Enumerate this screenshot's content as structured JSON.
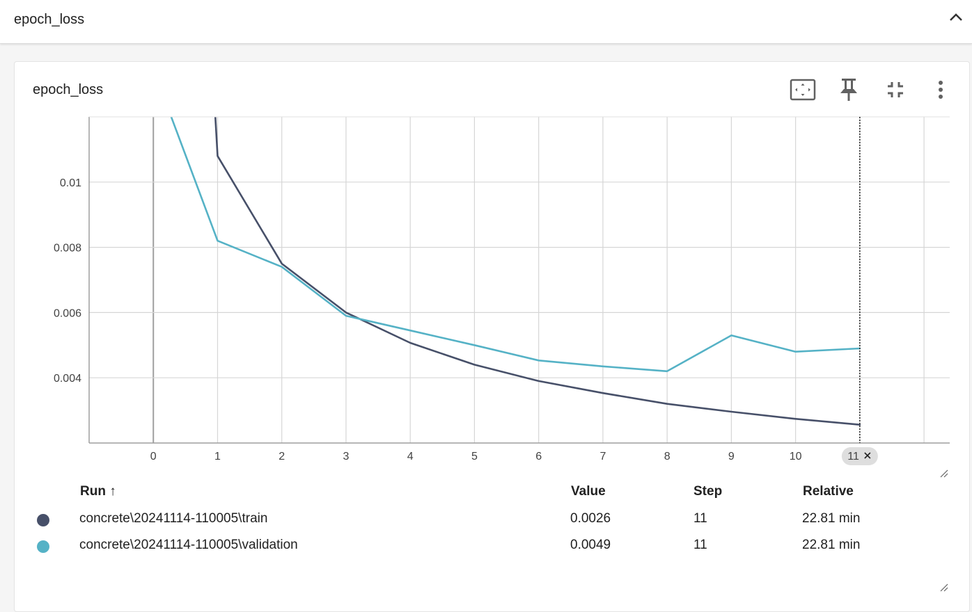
{
  "group": {
    "title": "epoch_loss"
  },
  "card": {
    "title": "epoch_loss",
    "toolbar": {
      "fit_icon": "fit-domain-icon",
      "pin_icon": "pin-icon",
      "collapse_icon": "fullscreen-exit-icon",
      "menu_icon": "more-vert-icon"
    }
  },
  "chart_data": {
    "type": "line",
    "x_ticks": [
      "0",
      "1",
      "2",
      "3",
      "4",
      "5",
      "6",
      "7",
      "8",
      "9",
      "10"
    ],
    "y_ticks": [
      "0.01",
      "0.008",
      "0.006",
      "0.004"
    ],
    "xlim": [
      -1,
      12.4
    ],
    "ylim": [
      0.002,
      0.012
    ],
    "grid": true,
    "hover_step_label": "11",
    "series": [
      {
        "color": "#475069",
        "points": [
          [
            0.95,
            0.0125
          ],
          [
            1,
            0.0108
          ],
          [
            2,
            0.0075
          ],
          [
            3,
            0.006
          ],
          [
            4,
            0.00507
          ],
          [
            5,
            0.0044
          ],
          [
            6,
            0.0039
          ],
          [
            7,
            0.00353
          ],
          [
            8,
            0.0032
          ],
          [
            9,
            0.00296
          ],
          [
            10,
            0.00274
          ],
          [
            11,
            0.00256
          ]
        ]
      },
      {
        "color": "#55b2c6",
        "points": [
          [
            0.24,
            0.0122
          ],
          [
            1,
            0.0082
          ],
          [
            2,
            0.0074
          ],
          [
            3,
            0.0059
          ],
          [
            4,
            0.00545
          ],
          [
            5,
            0.005
          ],
          [
            6,
            0.00453
          ],
          [
            7,
            0.00435
          ],
          [
            8,
            0.0042
          ],
          [
            9,
            0.0053
          ],
          [
            10,
            0.0048
          ],
          [
            11,
            0.0049
          ]
        ]
      }
    ]
  },
  "table": {
    "headers": {
      "run": "Run ↑",
      "value": "Value",
      "step": "Step",
      "relative": "Relative"
    },
    "rows": [
      {
        "run": "concrete\\20241114-110005\\train",
        "value": "0.0026",
        "step": "11",
        "relative": "22.81 min",
        "color": "#475069"
      },
      {
        "run": "concrete\\20241114-110005\\validation",
        "value": "0.0049",
        "step": "11",
        "relative": "22.81 min",
        "color": "#55b2c6"
      }
    ]
  }
}
